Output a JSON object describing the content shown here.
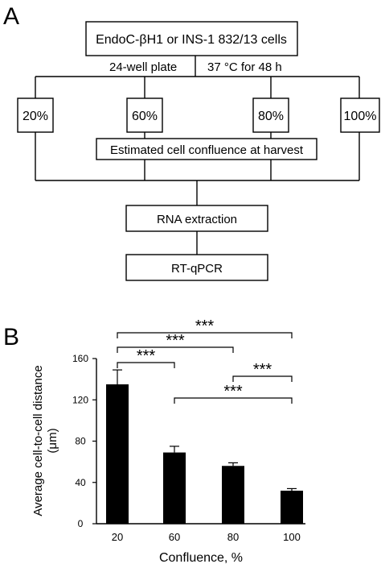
{
  "panel_a": {
    "label": "A",
    "top_box": "EndoC-βH1 or INS-1 832/13 cells",
    "condition_left": "24-well plate",
    "condition_right": "37 °C for 48 h",
    "confluence_boxes": [
      "20%",
      "60%",
      "80%",
      "100%"
    ],
    "confluence_caption": "Estimated cell confluence at harvest",
    "step1": "RNA extraction",
    "step2": "RT-qPCR"
  },
  "panel_b": {
    "label": "B"
  },
  "chart_data": {
    "type": "bar",
    "categories": [
      "20",
      "60",
      "80",
      "100"
    ],
    "values": [
      135,
      69,
      56,
      32
    ],
    "errors": [
      14,
      6,
      3,
      2
    ],
    "xlabel": "Confluence, %",
    "ylabel_line1": "Average cell-to-cell distance",
    "ylabel_line2": "(μm)",
    "ylim": [
      0,
      160
    ],
    "yticks": [
      0,
      40,
      80,
      120,
      160
    ],
    "significance": [
      {
        "from": "20",
        "to": "100",
        "label": "***"
      },
      {
        "from": "20",
        "to": "80",
        "label": "***"
      },
      {
        "from": "20",
        "to": "60",
        "label": "***"
      },
      {
        "from": "80",
        "to": "100",
        "label": "***"
      },
      {
        "from": "60",
        "to": "100",
        "label": "***"
      }
    ]
  }
}
